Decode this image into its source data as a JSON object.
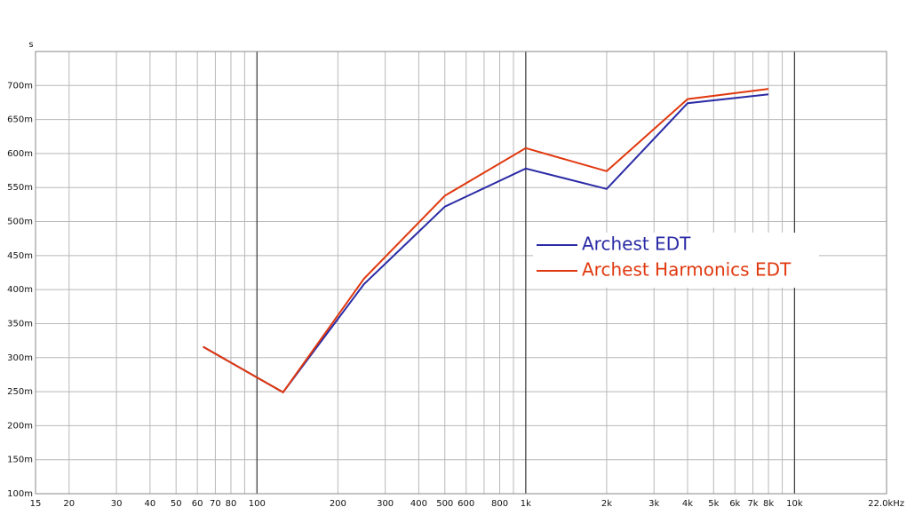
{
  "chart_data": {
    "type": "line",
    "y_unit": "s",
    "log_x": true,
    "grid": true,
    "legend_position": "right",
    "x": [
      63,
      125,
      250,
      500,
      1000,
      2000,
      4000,
      8000
    ],
    "series": [
      {
        "name": "Archest EDT",
        "color": "#2a2aa6",
        "values": [
          0.316,
          0.249,
          0.408,
          0.522,
          0.578,
          0.548,
          0.674,
          0.687
        ]
      },
      {
        "name": "Archest Harmonics EDT",
        "color": "#e0380e",
        "values": [
          0.316,
          0.249,
          0.416,
          0.538,
          0.608,
          0.574,
          0.68,
          0.695
        ]
      }
    ],
    "xlim": [
      15,
      22000
    ],
    "ylim": [
      0.1,
      0.75
    ],
    "xticks": [
      15,
      20,
      30,
      40,
      50,
      60,
      70,
      80,
      100,
      200,
      300,
      400,
      500,
      600,
      800,
      {
        "value": 1000,
        "label": "1k"
      },
      {
        "value": 2000,
        "label": "2k"
      },
      {
        "value": 3000,
        "label": "3k"
      },
      {
        "value": 4000,
        "label": "4k"
      },
      {
        "value": 5000,
        "label": "5k"
      },
      {
        "value": 6000,
        "label": "6k"
      },
      {
        "value": 7000,
        "label": "7k"
      },
      {
        "value": 8000,
        "label": "8k"
      },
      {
        "value": 10000,
        "label": "10k"
      },
      {
        "value": 22000,
        "label": "22.0kHz"
      }
    ],
    "x_minor_grid": [
      90,
      700,
      900,
      9000
    ],
    "yticks": [
      {
        "value": 0.1,
        "label": "100m"
      },
      {
        "value": 0.15,
        "label": "150m"
      },
      {
        "value": 0.2,
        "label": "200m"
      },
      {
        "value": 0.25,
        "label": "250m"
      },
      {
        "value": 0.3,
        "label": "300m"
      },
      {
        "value": 0.35,
        "label": "350m"
      },
      {
        "value": 0.4,
        "label": "400m"
      },
      {
        "value": 0.45,
        "label": "450m"
      },
      {
        "value": 0.5,
        "label": "500m"
      },
      {
        "value": 0.55,
        "label": "550m"
      },
      {
        "value": 0.6,
        "label": "600m"
      },
      {
        "value": 0.65,
        "label": "650m"
      },
      {
        "value": 0.7,
        "label": "700m"
      }
    ]
  }
}
